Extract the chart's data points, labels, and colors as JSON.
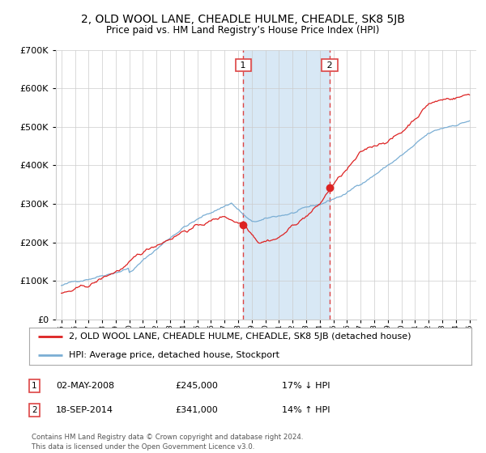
{
  "title": "2, OLD WOOL LANE, CHEADLE HULME, CHEADLE, SK8 5JB",
  "subtitle": "Price paid vs. HM Land Registry’s House Price Index (HPI)",
  "ylim": [
    0,
    700000
  ],
  "yticks": [
    0,
    100000,
    200000,
    300000,
    400000,
    500000,
    600000,
    700000
  ],
  "ytick_labels": [
    "£0",
    "£100K",
    "£200K",
    "£300K",
    "£400K",
    "£500K",
    "£600K",
    "£700K"
  ],
  "sale1_year": 2008.37,
  "sale1_price": 245000,
  "sale1_label": "1",
  "sale1_date": "02-MAY-2008",
  "sale1_pct": "17% ↓ HPI",
  "sale2_year": 2014.72,
  "sale2_price": 341000,
  "sale2_label": "2",
  "sale2_date": "18-SEP-2014",
  "sale2_pct": "14% ↑ HPI",
  "red_line_color": "#dd2222",
  "blue_line_color": "#7aaed4",
  "vline_color": "#dd4444",
  "shade_color": "#d8e8f5",
  "background_color": "#ffffff",
  "grid_color": "#cccccc",
  "legend_entry1": "2, OLD WOOL LANE, CHEADLE HULME, CHEADLE, SK8 5JB (detached house)",
  "legend_entry2": "HPI: Average price, detached house, Stockport",
  "footer": "Contains HM Land Registry data © Crown copyright and database right 2024.\nThis data is licensed under the Open Government Licence v3.0.",
  "title_fontsize": 10,
  "subtitle_fontsize": 8.5,
  "axis_fontsize": 8,
  "legend_fontsize": 8
}
